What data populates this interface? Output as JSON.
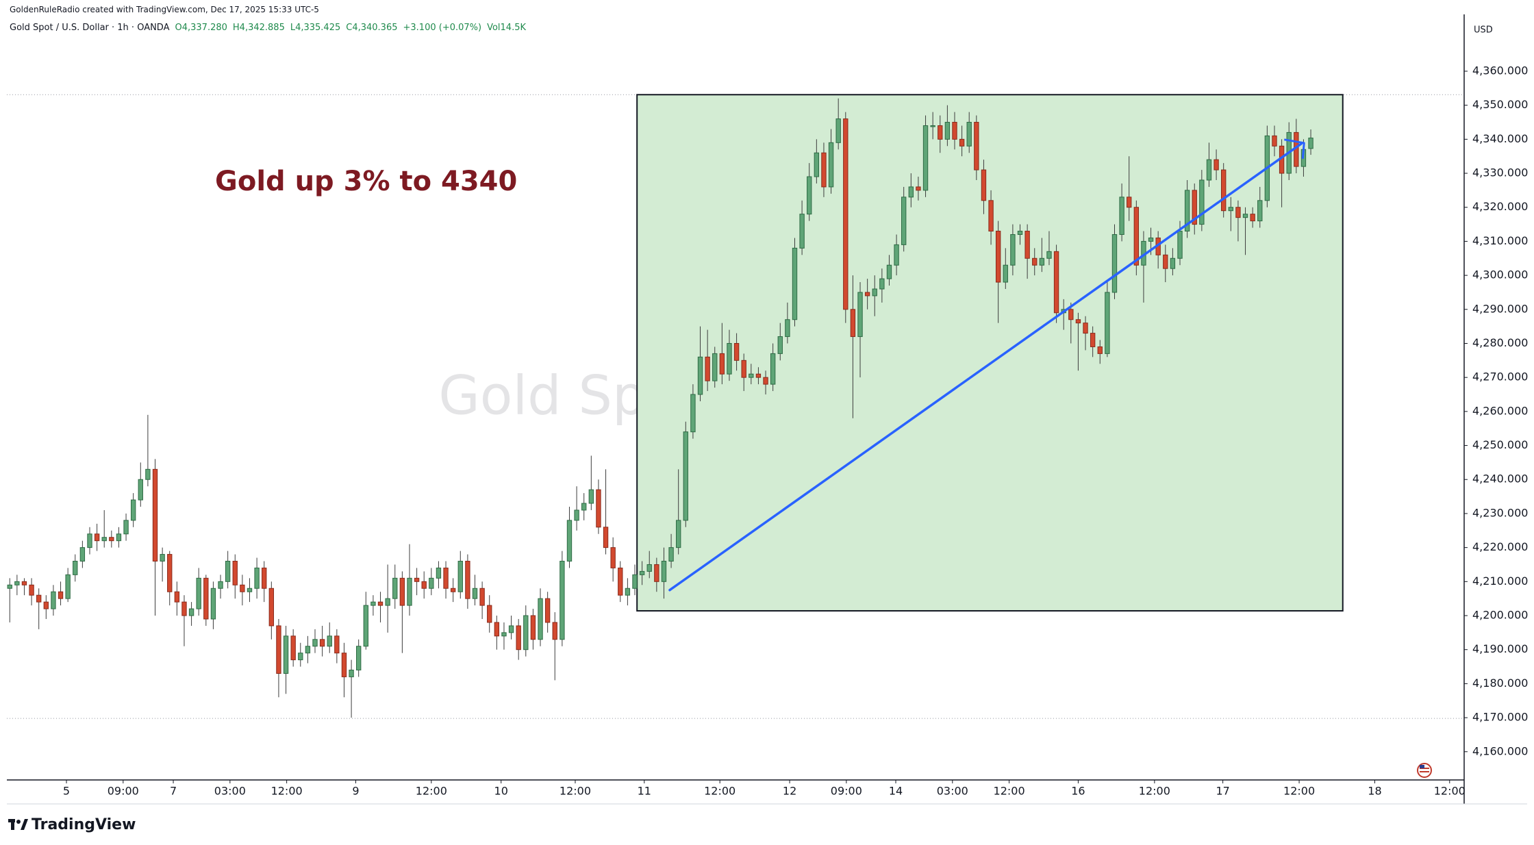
{
  "chart_data": {
    "type": "candlestick",
    "credit": "GoldenRuleRadio created with TradingView.com, Dec 17, 2025 15:33 UTC-5",
    "symbol": "Gold Spot / U.S. Dollar · 1h · OANDA",
    "ohlc_labels": [
      "O4,337.280",
      "H4,342.885",
      "L4,335.425",
      "C4,340.365",
      "+3.100 (+0.07%)"
    ],
    "volume_label": "Vol14.5K",
    "watermark": "Gold Spot / U.S. Dollar",
    "annotation": "Gold up 3% to 4340",
    "currency": "USD",
    "brand": "TradingView",
    "up_color": "#5fa577",
    "down_color": "#d2492f",
    "box_color": "#d3ecd3",
    "trend_color": "#2962ff",
    "grid": false,
    "xlim": [
      -0.4,
      200.1
    ],
    "ylim": [
      4151.7,
      4376.7
    ],
    "yticks": [
      {
        "value": 4160,
        "label": "4,160.000"
      },
      {
        "value": 4170,
        "label": "4,170.000"
      },
      {
        "value": 4180,
        "label": "4,180.000"
      },
      {
        "value": 4190,
        "label": "4,190.000"
      },
      {
        "value": 4200,
        "label": "4,200.000"
      },
      {
        "value": 4210,
        "label": "4,210.000"
      },
      {
        "value": 4220,
        "label": "4,220.000"
      },
      {
        "value": 4230,
        "label": "4,230.000"
      },
      {
        "value": 4240,
        "label": "4,240.000"
      },
      {
        "value": 4250,
        "label": "4,250.000"
      },
      {
        "value": 4260,
        "label": "4,260.000"
      },
      {
        "value": 4270,
        "label": "4,270.000"
      },
      {
        "value": 4280,
        "label": "4,280.000"
      },
      {
        "value": 4290,
        "label": "4,290.000"
      },
      {
        "value": 4300,
        "label": "4,300.000"
      },
      {
        "value": 4310,
        "label": "4,310.000"
      },
      {
        "value": 4320,
        "label": "4,320.000"
      },
      {
        "value": 4330,
        "label": "4,330.000"
      },
      {
        "value": 4340,
        "label": "4,340.000"
      },
      {
        "value": 4350,
        "label": "4,350.000"
      },
      {
        "value": 4360,
        "label": "4,360.000"
      }
    ],
    "xticks": [
      {
        "value": 7.8,
        "label": "5"
      },
      {
        "value": 15.6,
        "label": "09:00"
      },
      {
        "value": 22.5,
        "label": "7"
      },
      {
        "value": 30.3,
        "label": "03:00"
      },
      {
        "value": 38.1,
        "label": "12:00"
      },
      {
        "value": 47.6,
        "label": "9"
      },
      {
        "value": 58.0,
        "label": "12:00"
      },
      {
        "value": 67.6,
        "label": "10"
      },
      {
        "value": 77.8,
        "label": "12:00"
      },
      {
        "value": 87.3,
        "label": "11"
      },
      {
        "value": 97.7,
        "label": "12:00"
      },
      {
        "value": 107.3,
        "label": "12"
      },
      {
        "value": 115.1,
        "label": "09:00"
      },
      {
        "value": 121.9,
        "label": "14"
      },
      {
        "value": 129.7,
        "label": "03:00"
      },
      {
        "value": 137.5,
        "label": "12:00"
      },
      {
        "value": 147.0,
        "label": "16"
      },
      {
        "value": 157.5,
        "label": "12:00"
      },
      {
        "value": 166.9,
        "label": "17"
      },
      {
        "value": 177.4,
        "label": "12:00"
      },
      {
        "value": 187.8,
        "label": "18"
      },
      {
        "value": 198.1,
        "label": "12:00"
      }
    ],
    "hlines": [
      4353.1,
      4169.8
    ],
    "box": {
      "x": [
        86.3,
        183.4
      ],
      "y": [
        4201.4,
        4353.1
      ]
    },
    "trendline": {
      "x": [
        90.8,
        177.7
      ],
      "y": [
        4207.5,
        4338.7
      ]
    },
    "ohlc": [
      [
        4208,
        4211,
        4198,
        4209
      ],
      [
        4209,
        4212,
        4206,
        4210
      ],
      [
        4210,
        4211,
        4206,
        4209
      ],
      [
        4209,
        4211,
        4203,
        4206
      ],
      [
        4206,
        4208,
        4196,
        4204
      ],
      [
        4204,
        4206,
        4199,
        4202
      ],
      [
        4202,
        4209,
        4200,
        4207
      ],
      [
        4207,
        4210,
        4203,
        4205
      ],
      [
        4205,
        4214,
        4204,
        4212
      ],
      [
        4212,
        4218,
        4210,
        4216
      ],
      [
        4216,
        4222,
        4214,
        4220
      ],
      [
        4220,
        4226,
        4218,
        4224
      ],
      [
        4224,
        4227,
        4219,
        4222
      ],
      [
        4222,
        4231,
        4220,
        4223
      ],
      [
        4223,
        4225,
        4220,
        4222
      ],
      [
        4222,
        4226,
        4220,
        4224
      ],
      [
        4224,
        4230,
        4222,
        4228
      ],
      [
        4228,
        4236,
        4226,
        4234
      ],
      [
        4234,
        4245,
        4232,
        4240
      ],
      [
        4240,
        4259,
        4238,
        4243
      ],
      [
        4243,
        4246,
        4200,
        4216
      ],
      [
        4216,
        4220,
        4210,
        4218
      ],
      [
        4218,
        4219,
        4203,
        4207
      ],
      [
        4207,
        4210,
        4200,
        4204
      ],
      [
        4204,
        4206,
        4191,
        4200
      ],
      [
        4200,
        4204,
        4197,
        4202
      ],
      [
        4202,
        4214,
        4200,
        4211
      ],
      [
        4211,
        4212,
        4197,
        4199
      ],
      [
        4199,
        4210,
        4196,
        4208
      ],
      [
        4208,
        4212,
        4205,
        4210
      ],
      [
        4210,
        4219,
        4208,
        4216
      ],
      [
        4216,
        4218,
        4205,
        4209
      ],
      [
        4209,
        4212,
        4203,
        4207
      ],
      [
        4207,
        4211,
        4204,
        4208
      ],
      [
        4208,
        4217,
        4205,
        4214
      ],
      [
        4214,
        4216,
        4204,
        4208
      ],
      [
        4208,
        4210,
        4193,
        4197
      ],
      [
        4197,
        4199,
        4176,
        4183
      ],
      [
        4183,
        4197,
        4177,
        4194
      ],
      [
        4194,
        4196,
        4185,
        4187
      ],
      [
        4187,
        4192,
        4185,
        4189
      ],
      [
        4189,
        4194,
        4186,
        4191
      ],
      [
        4191,
        4196,
        4189,
        4193
      ],
      [
        4193,
        4197,
        4188,
        4191
      ],
      [
        4191,
        4198,
        4189,
        4194
      ],
      [
        4194,
        4196,
        4186,
        4189
      ],
      [
        4189,
        4192,
        4176,
        4182
      ],
      [
        4182,
        4187,
        4170,
        4184
      ],
      [
        4184,
        4193,
        4182,
        4191
      ],
      [
        4191,
        4207,
        4190,
        4203
      ],
      [
        4203,
        4206,
        4200,
        4204
      ],
      [
        4204,
        4207,
        4198,
        4203
      ],
      [
        4203,
        4215,
        4195,
        4205
      ],
      [
        4205,
        4215,
        4202,
        4211
      ],
      [
        4211,
        4213,
        4189,
        4203
      ],
      [
        4203,
        4221,
        4200,
        4211
      ],
      [
        4211,
        4214,
        4206,
        4210
      ],
      [
        4210,
        4213,
        4205,
        4208
      ],
      [
        4208,
        4214,
        4206,
        4211
      ],
      [
        4211,
        4216,
        4208,
        4214
      ],
      [
        4214,
        4216,
        4205,
        4208
      ],
      [
        4208,
        4211,
        4204,
        4207
      ],
      [
        4207,
        4219,
        4205,
        4216
      ],
      [
        4216,
        4218,
        4202,
        4205
      ],
      [
        4205,
        4212,
        4203,
        4208
      ],
      [
        4208,
        4210,
        4199,
        4203
      ],
      [
        4203,
        4206,
        4195,
        4198
      ],
      [
        4198,
        4200,
        4190,
        4194
      ],
      [
        4194,
        4198,
        4190,
        4195
      ],
      [
        4195,
        4200,
        4193,
        4197
      ],
      [
        4197,
        4199,
        4187,
        4190
      ],
      [
        4190,
        4203,
        4188,
        4200
      ],
      [
        4200,
        4202,
        4190,
        4193
      ],
      [
        4193,
        4208,
        4191,
        4205
      ],
      [
        4205,
        4207,
        4195,
        4198
      ],
      [
        4198,
        4201,
        4181,
        4193
      ],
      [
        4193,
        4219,
        4191,
        4216
      ],
      [
        4216,
        4232,
        4214,
        4228
      ],
      [
        4228,
        4238,
        4225,
        4231
      ],
      [
        4231,
        4236,
        4228,
        4233
      ],
      [
        4233,
        4247,
        4231,
        4237
      ],
      [
        4237,
        4240,
        4224,
        4226
      ],
      [
        4226,
        4243,
        4218,
        4220
      ],
      [
        4220,
        4223,
        4210,
        4214
      ],
      [
        4214,
        4216,
        4204,
        4206
      ],
      [
        4206,
        4211,
        4203,
        4208
      ],
      [
        4208,
        4215,
        4206,
        4212
      ],
      [
        4212,
        4216,
        4209,
        4213
      ],
      [
        4213,
        4219,
        4211,
        4215
      ],
      [
        4215,
        4217,
        4207,
        4210
      ],
      [
        4210,
        4220,
        4205,
        4216
      ],
      [
        4216,
        4224,
        4214,
        4220
      ],
      [
        4220,
        4243,
        4218,
        4228
      ],
      [
        4228,
        4257,
        4226,
        4254
      ],
      [
        4254,
        4268,
        4252,
        4265
      ],
      [
        4265,
        4285,
        4263,
        4276
      ],
      [
        4276,
        4284,
        4266,
        4269
      ],
      [
        4269,
        4279,
        4267,
        4277
      ],
      [
        4277,
        4286,
        4268,
        4271
      ],
      [
        4271,
        4284,
        4269,
        4280
      ],
      [
        4280,
        4283,
        4272,
        4275
      ],
      [
        4275,
        4277,
        4266,
        4270
      ],
      [
        4270,
        4274,
        4268,
        4271
      ],
      [
        4271,
        4273,
        4268,
        4270
      ],
      [
        4270,
        4272,
        4265,
        4268
      ],
      [
        4268,
        4280,
        4266,
        4277
      ],
      [
        4277,
        4286,
        4275,
        4282
      ],
      [
        4282,
        4292,
        4280,
        4287
      ],
      [
        4287,
        4311,
        4285,
        4308
      ],
      [
        4308,
        4322,
        4306,
        4318
      ],
      [
        4318,
        4333,
        4316,
        4329
      ],
      [
        4329,
        4340,
        4327,
        4336
      ],
      [
        4336,
        4339,
        4323,
        4326
      ],
      [
        4326,
        4343,
        4324,
        4339
      ],
      [
        4339,
        4352,
        4337,
        4346
      ],
      [
        4346,
        4348,
        4286,
        4290
      ],
      [
        4290,
        4300,
        4258,
        4282
      ],
      [
        4282,
        4298,
        4270,
        4295
      ],
      [
        4295,
        4299,
        4290,
        4294
      ],
      [
        4294,
        4300,
        4288,
        4296
      ],
      [
        4296,
        4302,
        4292,
        4299
      ],
      [
        4299,
        4306,
        4297,
        4303
      ],
      [
        4303,
        4312,
        4300,
        4309
      ],
      [
        4309,
        4326,
        4307,
        4323
      ],
      [
        4323,
        4330,
        4320,
        4326
      ],
      [
        4326,
        4329,
        4322,
        4325
      ],
      [
        4325,
        4347,
        4323,
        4344
      ],
      [
        4344,
        4348,
        4340,
        4344
      ],
      [
        4344,
        4347,
        4336,
        4340
      ],
      [
        4340,
        4350,
        4338,
        4345
      ],
      [
        4345,
        4348,
        4337,
        4340
      ],
      [
        4340,
        4344,
        4335,
        4338
      ],
      [
        4338,
        4348,
        4336,
        4345
      ],
      [
        4345,
        4347,
        4328,
        4331
      ],
      [
        4331,
        4334,
        4318,
        4322
      ],
      [
        4322,
        4325,
        4309,
        4313
      ],
      [
        4313,
        4316,
        4286,
        4298
      ],
      [
        4298,
        4308,
        4296,
        4303
      ],
      [
        4303,
        4315,
        4300,
        4312
      ],
      [
        4312,
        4315,
        4309,
        4313
      ],
      [
        4313,
        4315,
        4299,
        4305
      ],
      [
        4305,
        4308,
        4300,
        4303
      ],
      [
        4303,
        4311,
        4301,
        4305
      ],
      [
        4305,
        4313,
        4303,
        4307
      ],
      [
        4307,
        4309,
        4286,
        4289
      ],
      [
        4289,
        4293,
        4284,
        4290
      ],
      [
        4290,
        4292,
        4280,
        4287
      ],
      [
        4287,
        4289,
        4272,
        4286
      ],
      [
        4286,
        4288,
        4278,
        4283
      ],
      [
        4283,
        4285,
        4276,
        4279
      ],
      [
        4279,
        4281,
        4274,
        4277
      ],
      [
        4277,
        4298,
        4276,
        4295
      ],
      [
        4295,
        4315,
        4293,
        4312
      ],
      [
        4312,
        4327,
        4310,
        4323
      ],
      [
        4323,
        4335,
        4316,
        4320
      ],
      [
        4320,
        4322,
        4300,
        4303
      ],
      [
        4303,
        4313,
        4292,
        4310
      ],
      [
        4310,
        4314,
        4306,
        4311
      ],
      [
        4311,
        4313,
        4302,
        4306
      ],
      [
        4306,
        4309,
        4298,
        4302
      ],
      [
        4302,
        4308,
        4300,
        4305
      ],
      [
        4305,
        4316,
        4303,
        4313
      ],
      [
        4313,
        4328,
        4311,
        4325
      ],
      [
        4325,
        4327,
        4312,
        4315
      ],
      [
        4315,
        4331,
        4313,
        4328
      ],
      [
        4328,
        4339,
        4326,
        4334
      ],
      [
        4334,
        4337,
        4328,
        4331
      ],
      [
        4331,
        4333,
        4317,
        4319
      ],
      [
        4319,
        4323,
        4313,
        4320
      ],
      [
        4320,
        4322,
        4310,
        4317
      ],
      [
        4317,
        4320,
        4306,
        4318
      ],
      [
        4318,
        4320,
        4314,
        4316
      ],
      [
        4316,
        4326,
        4314,
        4322
      ],
      [
        4322,
        4344,
        4320,
        4341
      ],
      [
        4341,
        4344,
        4335,
        4338
      ],
      [
        4338,
        4340,
        4320,
        4330
      ],
      [
        4330,
        4345,
        4328,
        4342
      ],
      [
        4342,
        4346,
        4330,
        4332
      ],
      [
        4332,
        4340,
        4329,
        4337
      ],
      [
        4337.28,
        4342.885,
        4335.425,
        4340.365
      ]
    ]
  }
}
